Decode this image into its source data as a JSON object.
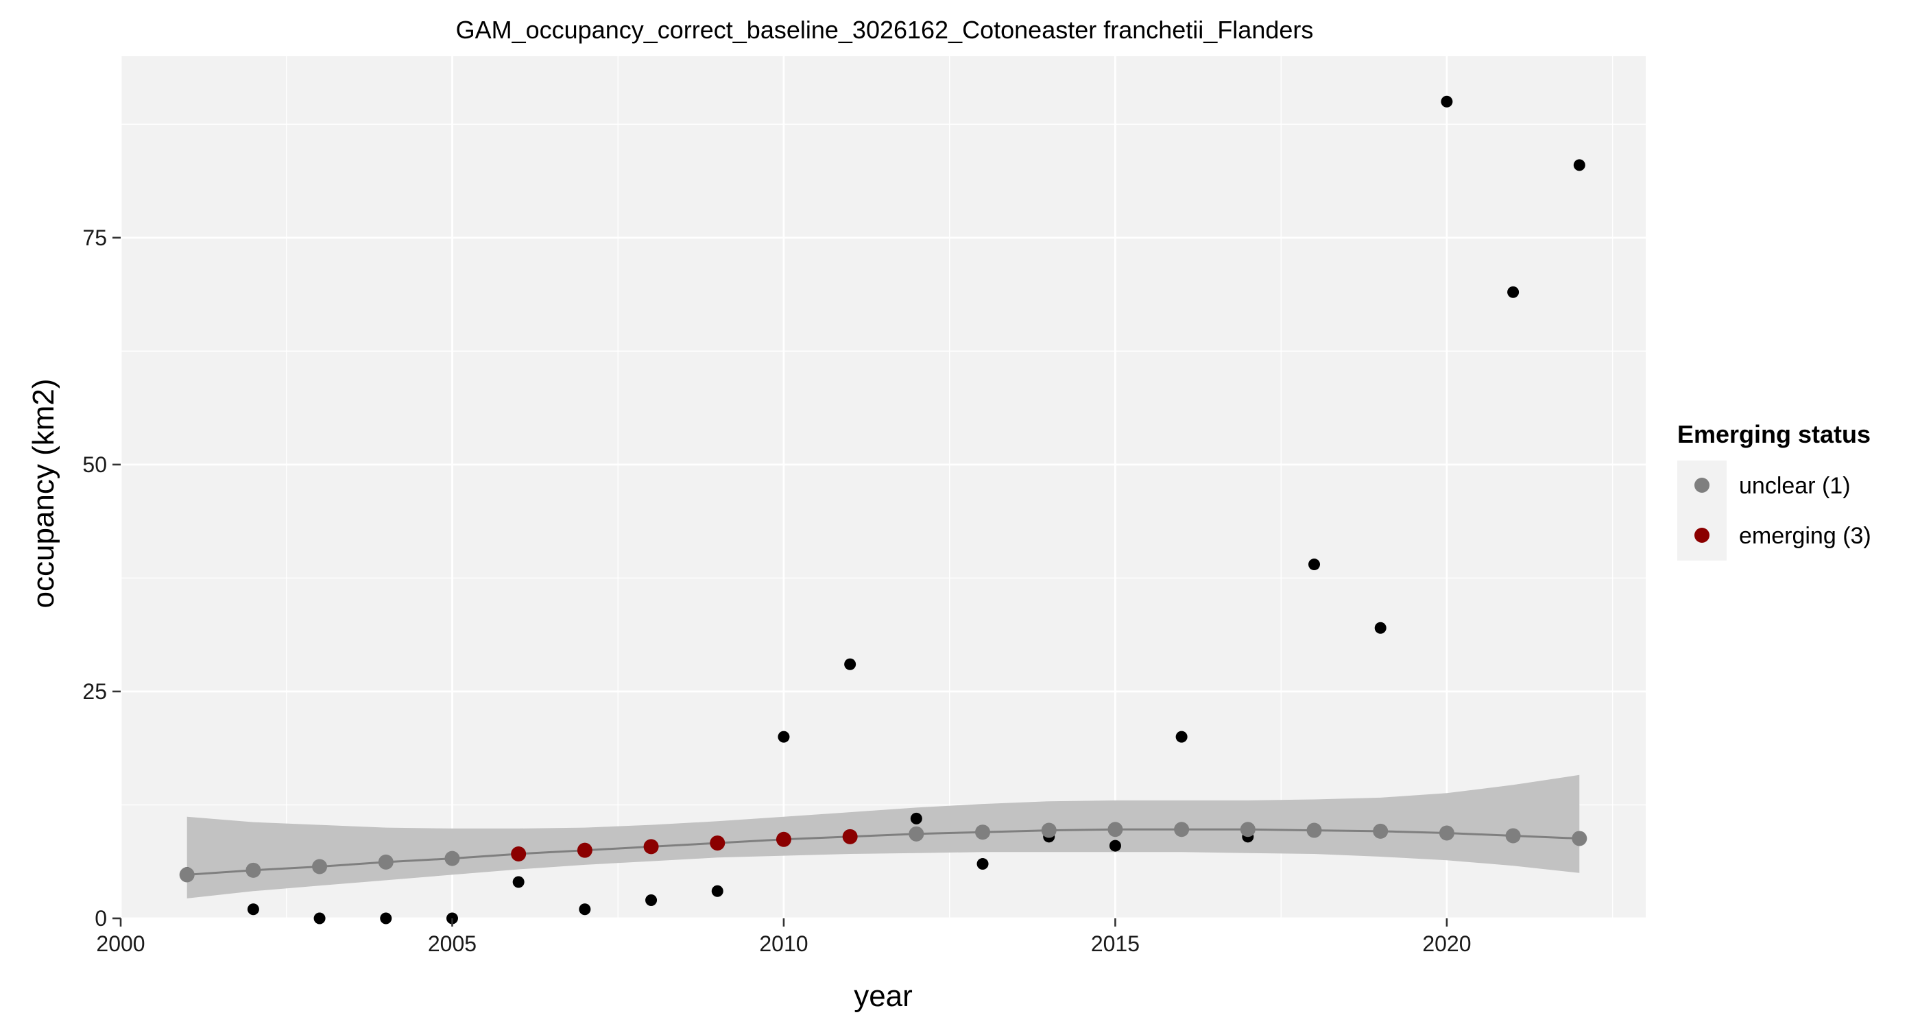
{
  "chart_data": {
    "type": "scatter",
    "title": "GAM_occupancy_correct_baseline_3026162_Cotoneaster franchetii_Flanders",
    "xlabel": "year",
    "ylabel": "occupancy (km2)",
    "xlim": [
      2000,
      2023
    ],
    "ylim": [
      0,
      95
    ],
    "x_ticks": [
      2000,
      2005,
      2010,
      2015,
      2020
    ],
    "y_ticks": [
      0,
      25,
      50,
      75
    ],
    "x_tick_labels": [
      "2000",
      "2005",
      "2010",
      "2015",
      "2020"
    ],
    "y_tick_labels": [
      "0",
      "25",
      "50",
      "75"
    ],
    "grid": true,
    "legend": {
      "title": "Emerging status",
      "position": "right",
      "entries": [
        {
          "label": "unclear (1)",
          "color": "#7f7f7f"
        },
        {
          "label": "emerging (3)",
          "color": "#8b0000"
        }
      ]
    },
    "colors": {
      "panel_background": "#f2f2f2",
      "grid": "#ffffff",
      "observed_points": "#000000",
      "fit_line": "#7f7f7f",
      "confidence_band": "#c2c2c2",
      "unclear": "#7f7f7f",
      "emerging": "#8b0000"
    },
    "observed": {
      "x": [
        2001,
        2002,
        2003,
        2004,
        2005,
        2006,
        2007,
        2008,
        2009,
        2010,
        2011,
        2012,
        2013,
        2014,
        2015,
        2016,
        2017,
        2018,
        2019,
        2020,
        2021,
        2022
      ],
      "y": [
        5,
        1,
        0,
        0,
        0,
        4,
        1,
        2,
        3,
        20,
        28,
        11,
        6,
        9,
        8,
        20,
        9,
        39,
        32,
        90,
        69,
        83
      ]
    },
    "fit": {
      "x": [
        2001,
        2002,
        2003,
        2004,
        2005,
        2006,
        2007,
        2008,
        2009,
        2010,
        2011,
        2012,
        2013,
        2014,
        2015,
        2016,
        2017,
        2018,
        2019,
        2020,
        2021,
        2022
      ],
      "y": [
        4.8,
        5.3,
        5.7,
        6.2,
        6.6,
        7.1,
        7.5,
        7.9,
        8.3,
        8.7,
        9.0,
        9.3,
        9.5,
        9.7,
        9.8,
        9.8,
        9.8,
        9.7,
        9.6,
        9.4,
        9.1,
        8.8
      ],
      "lower": [
        2.2,
        3.0,
        3.6,
        4.2,
        4.8,
        5.4,
        5.9,
        6.3,
        6.7,
        6.9,
        7.1,
        7.2,
        7.3,
        7.3,
        7.3,
        7.3,
        7.2,
        7.1,
        6.8,
        6.4,
        5.8,
        5.0
      ],
      "upper": [
        11.2,
        10.6,
        10.3,
        10.0,
        9.9,
        9.9,
        10.0,
        10.3,
        10.7,
        11.2,
        11.7,
        12.2,
        12.6,
        12.9,
        13.0,
        13.0,
        13.0,
        13.1,
        13.3,
        13.8,
        14.7,
        15.8
      ],
      "status": [
        "unclear",
        "unclear",
        "unclear",
        "unclear",
        "unclear",
        "emerging",
        "emerging",
        "emerging",
        "emerging",
        "emerging",
        "emerging",
        "unclear",
        "unclear",
        "unclear",
        "unclear",
        "unclear",
        "unclear",
        "unclear",
        "unclear",
        "unclear",
        "unclear",
        "unclear"
      ]
    }
  }
}
